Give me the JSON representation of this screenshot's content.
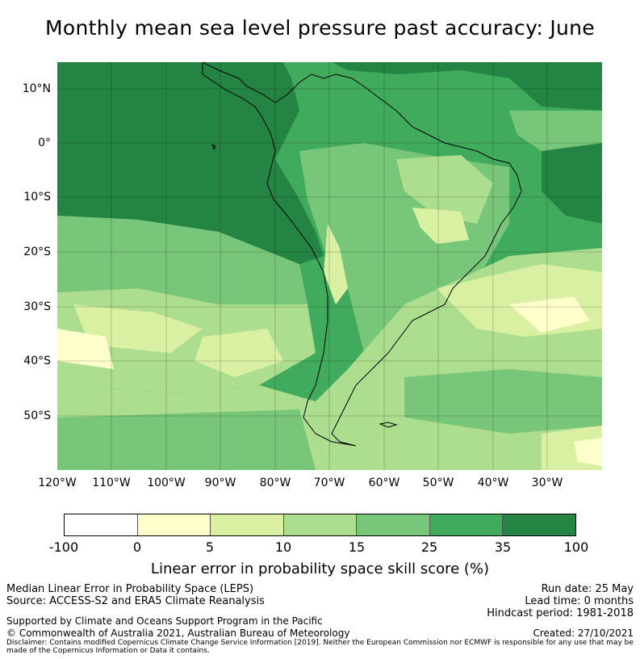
{
  "title": "Monthly mean sea level pressure past accuracy: June",
  "map": {
    "lat_labels": [
      "10°N",
      "0°",
      "10°S",
      "20°S",
      "30°S",
      "40°S",
      "50°S"
    ],
    "lon_labels": [
      "120°W",
      "110°W",
      "100°W",
      "90°W",
      "80°W",
      "70°W",
      "60°W",
      "50°W",
      "40°W",
      "30°W"
    ],
    "lat_range": [
      -60,
      15
    ],
    "lon_range": [
      -120,
      -20
    ],
    "gridlines": true,
    "coastline": "South America"
  },
  "colorbar": {
    "ticks": [
      "-100",
      "0",
      "5",
      "10",
      "15",
      "25",
      "35",
      "100"
    ],
    "colors": [
      "#ffffff",
      "#ffffcc",
      "#d9f0a3",
      "#addd8e",
      "#78c679",
      "#41ab5d",
      "#238443"
    ],
    "label": "Linear error in probability space skill score (%)"
  },
  "footer": {
    "line1": "Median Linear Error in Probability Space (LEPS)",
    "line2": "Source: ACCESS-S2 and ERA5 Climate Reanalysis",
    "run_date": "Run date: 25 May",
    "lead_time": "Lead time: 0 months",
    "hindcast": "Hindcast period: 1981-2018",
    "support": "Supported by Climate and Oceans Support Program in the Pacific",
    "copyright": "© Commonwealth of Australia 2021, Australian Bureau of Meteorology",
    "created": "Created: 27/10/2021",
    "disclaimer": "Disclaimer: Contains modified Copernicus Climate Change Service Information [2019]. Neither the European Commission nor ECMWF is responsible for any use that may be made of the Copernicus Information or Data it contains."
  }
}
